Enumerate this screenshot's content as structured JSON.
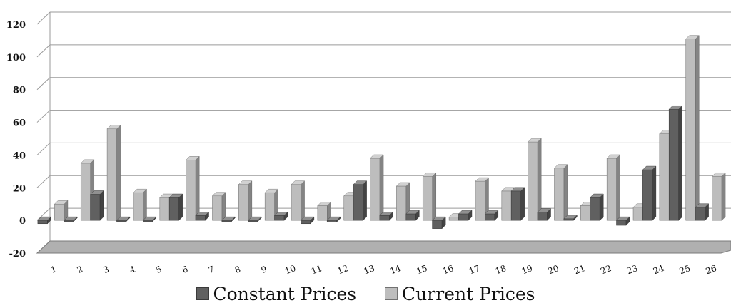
{
  "chart_data": {
    "type": "bar",
    "title": "",
    "xlabel": "",
    "ylabel": "",
    "ylim": [
      -20,
      120
    ],
    "yticks": [
      -20,
      0,
      20,
      40,
      60,
      80,
      100,
      120
    ],
    "grid": true,
    "legend_position": "bottom",
    "categories": [
      "1",
      "2",
      "3",
      "4",
      "5",
      "6",
      "7",
      "8",
      "9",
      "10",
      "11",
      "12",
      "13",
      "14",
      "15",
      "16",
      "17",
      "18",
      "19",
      "20",
      "21",
      "22",
      "23",
      "24",
      "25",
      "26"
    ],
    "series": [
      {
        "name": "Constant Prices",
        "color": "#606060",
        "values": [
          -2,
          0,
          16,
          0,
          0,
          14,
          3,
          0,
          0,
          3,
          -2,
          -1,
          22,
          3,
          4,
          -5,
          4,
          4,
          18,
          5,
          1,
          14,
          -3,
          31,
          68,
          8
        ]
      },
      {
        "name": "Current Prices",
        "color": "#bdbdbd",
        "values": [
          10,
          35,
          56,
          17,
          14,
          37,
          15,
          22,
          17,
          22,
          9,
          15,
          38,
          21,
          27,
          2,
          24,
          18,
          48,
          32,
          9,
          38,
          8,
          53,
          111,
          27
        ]
      }
    ]
  }
}
